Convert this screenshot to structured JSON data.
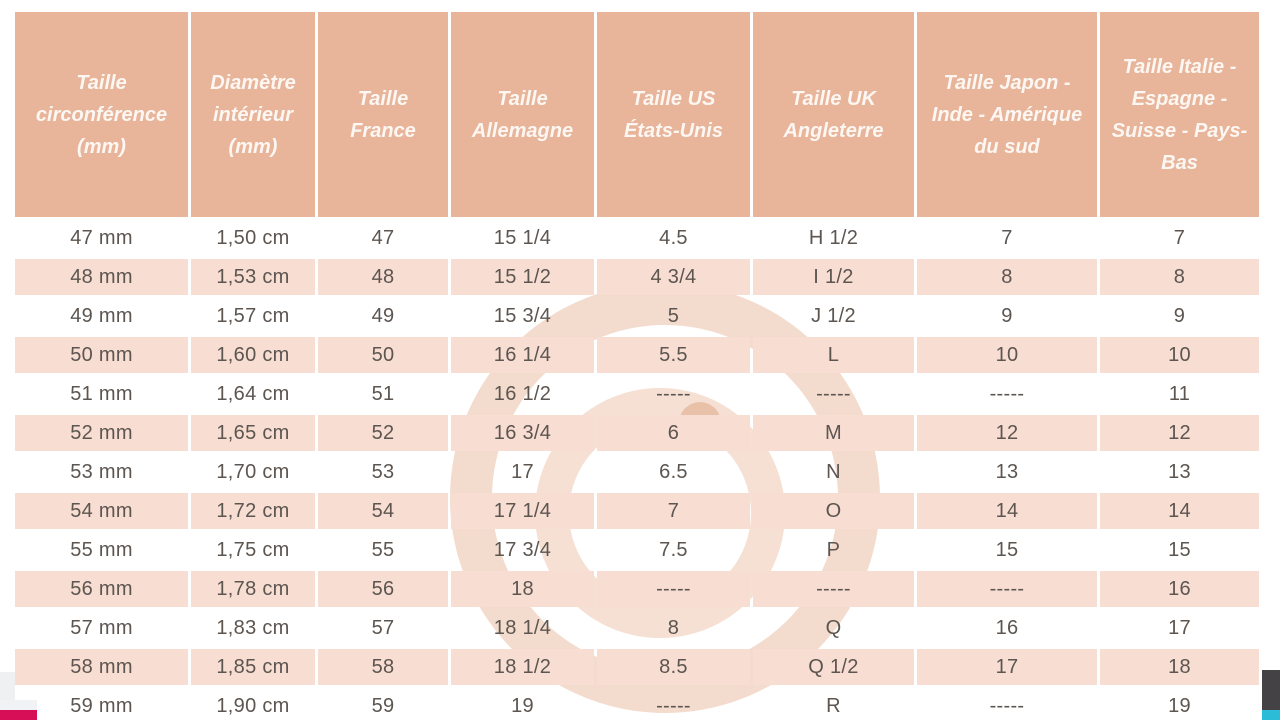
{
  "table": {
    "columns": [
      "Taille circonférence (mm)",
      "Diamètre intérieur (mm)",
      "Taille France",
      "Taille Allemagne",
      "Taille US États-Unis",
      "Taille UK Angleterre",
      "Taille Japon - Inde - Amérique du sud",
      "Taille Italie - Espagne - Suisse - Pays-Bas"
    ],
    "rows": [
      [
        "47 mm",
        "1,50 cm",
        "47",
        "15 1/4",
        "4.5",
        "H 1/2",
        "7",
        "7"
      ],
      [
        "48 mm",
        "1,53 cm",
        "48",
        "15 1/2",
        "4 3/4",
        "I 1/2",
        "8",
        "8"
      ],
      [
        "49 mm",
        "1,57 cm",
        "49",
        "15 3/4",
        "5",
        "J 1/2",
        "9",
        "9"
      ],
      [
        "50 mm",
        "1,60 cm",
        "50",
        "16 1/4",
        "5.5",
        "L",
        "10",
        "10"
      ],
      [
        "51 mm",
        "1,64 cm",
        "51",
        "16 1/2",
        "-----",
        "-----",
        "-----",
        "11"
      ],
      [
        "52 mm",
        "1,65 cm",
        "52",
        "16 3/4",
        "6",
        "M",
        "12",
        "12"
      ],
      [
        "53 mm",
        "1,70 cm",
        "53",
        "17",
        "6.5",
        "N",
        "13",
        "13"
      ],
      [
        "54 mm",
        "1,72 cm",
        "54",
        "17 1/4",
        "7",
        "O",
        "14",
        "14"
      ],
      [
        "55 mm",
        "1,75 cm",
        "55",
        "17 3/4",
        "7.5",
        "P",
        "15",
        "15"
      ],
      [
        "56 mm",
        "1,78 cm",
        "56",
        "18",
        "-----",
        "-----",
        "-----",
        "16"
      ],
      [
        "57 mm",
        "1,83 cm",
        "57",
        "18 1/4",
        "8",
        "Q",
        "16",
        "17"
      ],
      [
        "58 mm",
        "1,85 cm",
        "58",
        "18 1/2",
        "8.5",
        "Q 1/2",
        "17",
        "18"
      ],
      [
        "59 mm",
        "1,90 cm",
        "59",
        "19",
        "-----",
        "R",
        "-----",
        "19"
      ]
    ]
  },
  "chart_data": {
    "type": "table",
    "title": "",
    "columns": [
      "Taille circonférence (mm)",
      "Diamètre intérieur (mm)",
      "Taille France",
      "Taille Allemagne",
      "Taille US États-Unis",
      "Taille UK Angleterre",
      "Taille Japon - Inde - Amérique du sud",
      "Taille Italie - Espagne - Suisse - Pays-Bas"
    ],
    "rows": [
      [
        "47 mm",
        "1,50 cm",
        "47",
        "15 1/4",
        "4.5",
        "H 1/2",
        "7",
        "7"
      ],
      [
        "48 mm",
        "1,53 cm",
        "48",
        "15 1/2",
        "4 3/4",
        "I 1/2",
        "8",
        "8"
      ],
      [
        "49 mm",
        "1,57 cm",
        "49",
        "15 3/4",
        "5",
        "J 1/2",
        "9",
        "9"
      ],
      [
        "50 mm",
        "1,60 cm",
        "50",
        "16 1/4",
        "5.5",
        "L",
        "10",
        "10"
      ],
      [
        "51 mm",
        "1,64 cm",
        "51",
        "16 1/2",
        "-----",
        "-----",
        "-----",
        "11"
      ],
      [
        "52 mm",
        "1,65 cm",
        "52",
        "16 3/4",
        "6",
        "M",
        "12",
        "12"
      ],
      [
        "53 mm",
        "1,70 cm",
        "53",
        "17",
        "6.5",
        "N",
        "13",
        "13"
      ],
      [
        "54 mm",
        "1,72 cm",
        "54",
        "17 1/4",
        "7",
        "O",
        "14",
        "14"
      ],
      [
        "55 mm",
        "1,75 cm",
        "55",
        "17 3/4",
        "7.5",
        "P",
        "15",
        "15"
      ],
      [
        "56 mm",
        "1,78 cm",
        "56",
        "18",
        "-----",
        "-----",
        "-----",
        "16"
      ],
      [
        "57 mm",
        "1,83 cm",
        "57",
        "18 1/4",
        "8",
        "Q",
        "16",
        "17"
      ],
      [
        "58 mm",
        "1,85 cm",
        "58",
        "18 1/2",
        "8.5",
        "Q 1/2",
        "17",
        "18"
      ],
      [
        "59 mm",
        "1,90 cm",
        "59",
        "19",
        "-----",
        "R",
        "-----",
        "19"
      ]
    ]
  },
  "colors": {
    "header_bg": "#e8b59b",
    "header_text": "#fcf7f2",
    "row_alt_bg": "#f8ddd2",
    "cell_text": "#5c5550",
    "watermark": "#f3dccd",
    "edge_pink": "#d60f56",
    "edge_dark": "#454245",
    "edge_cyan": "#2bbcd8",
    "edge_gray": "#eef0f2"
  },
  "icons": {
    "watermark": "g-logo-watermark-icon"
  }
}
